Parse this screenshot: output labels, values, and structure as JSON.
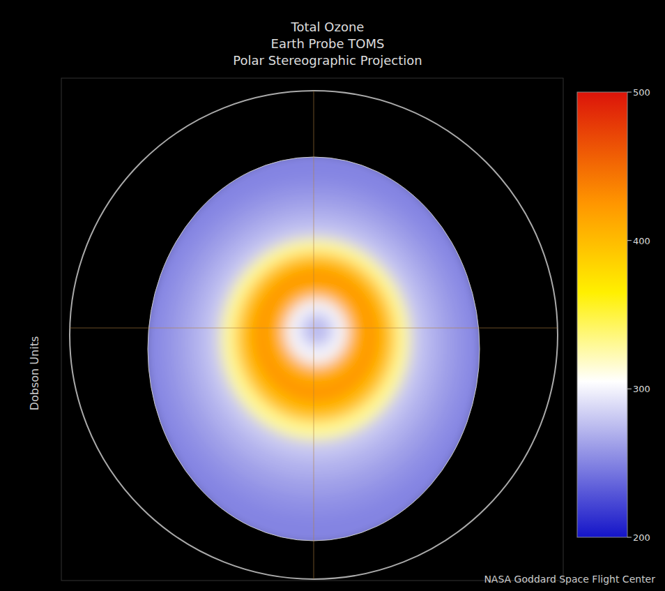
{
  "chart_data": {
    "type": "polar_map",
    "title": [
      "Total Ozone",
      "Earth Probe TOMS",
      "Polar Stereographic Projection"
    ],
    "side_label": "Dobson Units",
    "credit": "NASA Goddard Space Flight Center",
    "field": {
      "values": [
        250,
        255,
        262,
        270,
        280,
        330,
        400,
        425,
        410,
        300,
        275
      ]
    },
    "colorbar": {
      "range": [
        200,
        500
      ],
      "ticks": [
        200,
        300,
        400,
        500
      ]
    }
  }
}
